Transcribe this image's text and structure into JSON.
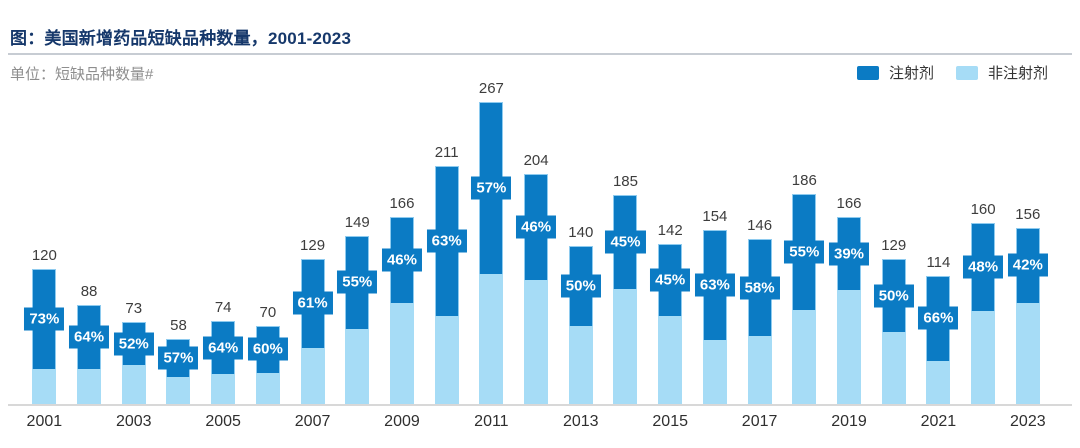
{
  "header": {
    "title": "图：美国新增药品短缺品种数量，2001-2023",
    "unit_label": "单位：短缺品种数量#"
  },
  "legend": {
    "items": [
      {
        "label": "注射剂",
        "color": "#0B7BC4"
      },
      {
        "label": "非注射剂",
        "color": "#A6DCF6"
      }
    ]
  },
  "colors": {
    "injectable": "#0B7BC4",
    "non_injectable": "#A6DCF6",
    "bar_border": "#8ECBEF",
    "title_navy": "#16386B",
    "rule_gray": "#C7CCD3",
    "axis_gray": "#D8D8D8",
    "value_text": "#3D3D3D",
    "pct_text": "#FFFFFF"
  },
  "chart_data": {
    "type": "bar",
    "stacked": true,
    "title": "美国新增药品短缺品种数量，2001-2023",
    "xlabel": "",
    "ylabel": "短缺品种数量#",
    "grid": false,
    "legend_position": "top-right",
    "ylim": [
      0,
      280
    ],
    "categories": [
      "2001",
      "2002",
      "2003",
      "2004",
      "2005",
      "2006",
      "2007",
      "2008",
      "2009",
      "2010",
      "2011",
      "2012",
      "2013",
      "2014",
      "2015",
      "2016",
      "2017",
      "2018",
      "2019",
      "2020",
      "2021",
      "2022",
      "2023"
    ],
    "x_tick_labels": [
      "2001",
      "2003",
      "2005",
      "2007",
      "2009",
      "2011",
      "2013",
      "2015",
      "2017",
      "2019",
      "2021",
      "2023"
    ],
    "totals": [
      120,
      88,
      73,
      58,
      74,
      70,
      129,
      149,
      166,
      211,
      267,
      204,
      140,
      185,
      142,
      154,
      146,
      186,
      166,
      129,
      114,
      160,
      156
    ],
    "injectable_pct": [
      73,
      64,
      52,
      57,
      64,
      60,
      61,
      55,
      46,
      63,
      57,
      46,
      50,
      45,
      45,
      63,
      58,
      55,
      39,
      50,
      66,
      48,
      42
    ],
    "series": [
      {
        "name": "注射剂",
        "color": "#0B7BC4",
        "values": [
          88,
          56,
          38,
          33,
          47,
          42,
          79,
          82,
          76,
          133,
          152,
          94,
          70,
          83,
          64,
          97,
          85,
          102,
          65,
          65,
          75,
          77,
          66
        ]
      },
      {
        "name": "非注射剂",
        "color": "#A6DCF6",
        "values": [
          32,
          32,
          35,
          25,
          27,
          28,
          50,
          67,
          90,
          78,
          115,
          110,
          70,
          102,
          78,
          57,
          61,
          84,
          101,
          64,
          39,
          83,
          90
        ]
      }
    ]
  }
}
